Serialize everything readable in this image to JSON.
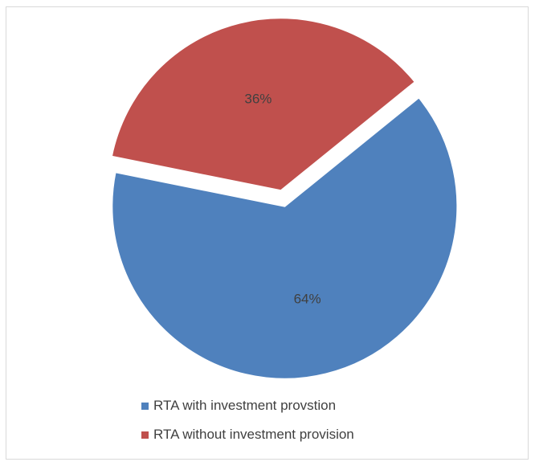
{
  "chart_data": {
    "type": "pie",
    "title": "",
    "slices": [
      {
        "label": "RTA with investment provstion",
        "value": 64,
        "value_label": "64%",
        "color": "#4f81bd"
      },
      {
        "label": "RTA without investment provision",
        "value": 36,
        "value_label": "36%",
        "color": "#c0504d"
      }
    ],
    "legend_position": "bottom"
  }
}
